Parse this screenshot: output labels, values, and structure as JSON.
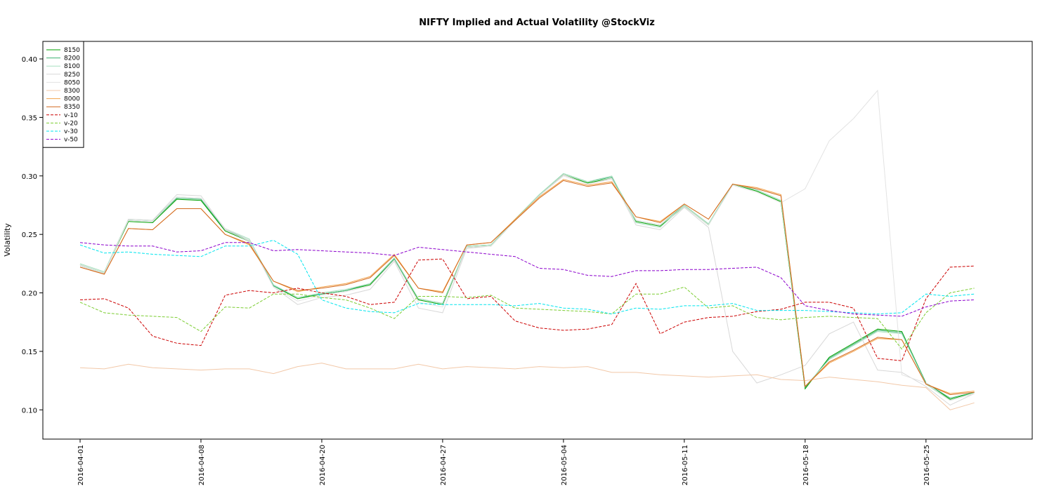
{
  "chart_data": {
    "type": "line",
    "title": "NIFTY Implied and Actual Volatility @StockViz",
    "xlabel": "",
    "ylabel": "Volatility",
    "ylim": [
      0.075,
      0.415
    ],
    "yticks": [
      "0.10",
      "0.15",
      "0.20",
      "0.25",
      "0.30",
      "0.35",
      "0.40"
    ],
    "x_tick_labels": [
      "2016-04-01",
      "2016-04-08",
      "2016-04-20",
      "2016-04-27",
      "2016-05-04",
      "2016-05-11",
      "2016-05-18",
      "2016-05-25"
    ],
    "grid": false,
    "legend_position": "top-left",
    "x": [
      "2016-04-01",
      "2016-04-04",
      "2016-04-05",
      "2016-04-06",
      "2016-04-07",
      "2016-04-08",
      "2016-04-11",
      "2016-04-12",
      "2016-04-13",
      "2016-04-18",
      "2016-04-20",
      "2016-04-21",
      "2016-04-22",
      "2016-04-25",
      "2016-04-26",
      "2016-04-27",
      "2016-04-28",
      "2016-04-29",
      "2016-05-02",
      "2016-05-03",
      "2016-05-04",
      "2016-05-05",
      "2016-05-06",
      "2016-05-09",
      "2016-05-10",
      "2016-05-11",
      "2016-05-12",
      "2016-05-13",
      "2016-05-16",
      "2016-05-17",
      "2016-05-18",
      "2016-05-19",
      "2016-05-20",
      "2016-05-23",
      "2016-05-24",
      "2016-05-25",
      "2016-05-26",
      "2016-05-27",
      "2016-05-30"
    ],
    "series": [
      {
        "name": "8150",
        "color": "#00a000",
        "dash": "",
        "values": [
          0.224,
          0.217,
          0.261,
          0.26,
          0.28,
          0.279,
          0.253,
          0.244,
          0.206,
          0.195,
          0.199,
          0.202,
          0.207,
          0.229,
          0.194,
          0.19,
          0.239,
          0.24,
          0.262,
          0.283,
          0.301,
          0.294,
          0.298,
          0.261,
          0.257,
          0.274,
          0.258,
          0.293,
          0.287,
          0.278,
          0.118,
          0.145,
          0.157,
          0.169,
          0.167,
          0.123,
          0.109,
          0.115,
          null
        ]
      },
      {
        "name": "8200",
        "color": "#3cb371",
        "dash": "",
        "values": [
          0.224,
          0.217,
          0.262,
          0.261,
          0.281,
          0.28,
          0.254,
          0.245,
          0.206,
          0.196,
          0.199,
          0.202,
          0.208,
          0.229,
          0.195,
          0.191,
          0.24,
          0.241,
          0.263,
          0.284,
          0.302,
          0.295,
          0.299,
          0.262,
          0.258,
          0.275,
          0.259,
          0.293,
          0.288,
          0.279,
          0.119,
          0.144,
          0.156,
          0.168,
          0.166,
          0.123,
          0.11,
          0.115,
          null
        ]
      },
      {
        "name": "8100",
        "color": "#a8e0c0",
        "dash": "",
        "values": [
          0.225,
          0.218,
          0.263,
          0.262,
          0.282,
          0.281,
          0.255,
          0.246,
          0.207,
          0.196,
          0.2,
          0.203,
          0.208,
          0.23,
          0.195,
          0.191,
          0.24,
          0.241,
          0.263,
          0.284,
          0.302,
          0.295,
          0.3,
          0.26,
          0.256,
          0.275,
          0.259,
          0.293,
          0.288,
          0.279,
          0.12,
          0.143,
          0.155,
          0.167,
          0.165,
          0.122,
          0.108,
          0.114,
          null
        ]
      },
      {
        "name": "8250",
        "color": "#d8d8d8",
        "dash": "",
        "values": [
          0.223,
          0.216,
          0.263,
          0.262,
          0.284,
          0.283,
          0.254,
          0.244,
          0.205,
          0.19,
          0.196,
          0.198,
          0.203,
          0.227,
          0.187,
          0.183,
          0.238,
          0.24,
          0.262,
          0.283,
          0.301,
          0.293,
          0.298,
          0.258,
          0.254,
          0.273,
          0.256,
          0.15,
          0.123,
          0.13,
          0.138,
          0.165,
          0.175,
          0.134,
          0.132,
          0.12,
          0.104,
          0.114,
          null
        ]
      },
      {
        "name": "8050",
        "color": "#e3e3e3",
        "dash": "",
        "values": [
          0.224,
          0.217,
          0.262,
          0.261,
          0.282,
          0.281,
          0.255,
          0.245,
          0.205,
          0.193,
          0.198,
          0.201,
          0.206,
          0.228,
          0.192,
          0.188,
          0.239,
          0.24,
          0.262,
          0.283,
          0.3,
          0.293,
          0.297,
          0.262,
          0.258,
          0.274,
          0.258,
          0.292,
          0.286,
          0.277,
          0.289,
          0.33,
          0.349,
          0.373,
          0.13,
          0.123,
          0.108,
          0.114,
          null
        ]
      },
      {
        "name": "8300",
        "color": "#f2c8a8",
        "dash": "",
        "values": [
          0.136,
          0.135,
          0.139,
          0.136,
          0.135,
          0.134,
          0.135,
          0.135,
          0.131,
          0.137,
          0.14,
          0.135,
          0.135,
          0.135,
          0.139,
          0.135,
          0.137,
          0.136,
          0.135,
          0.137,
          0.136,
          0.137,
          0.132,
          0.132,
          0.13,
          0.129,
          0.128,
          0.129,
          0.13,
          0.126,
          0.125,
          0.128,
          0.126,
          0.124,
          0.121,
          0.119,
          0.1,
          0.106,
          null
        ]
      },
      {
        "name": "8000",
        "color": "#f2a24a",
        "dash": "",
        "values": [
          0.222,
          0.216,
          0.255,
          0.254,
          0.272,
          0.272,
          0.25,
          0.241,
          0.21,
          0.201,
          0.205,
          0.208,
          0.214,
          0.233,
          0.204,
          0.201,
          0.241,
          0.243,
          0.263,
          0.282,
          0.297,
          0.292,
          0.295,
          0.265,
          0.261,
          0.276,
          0.263,
          0.293,
          0.29,
          0.284,
          0.12,
          0.14,
          0.15,
          0.161,
          0.16,
          0.122,
          0.114,
          0.116,
          null
        ]
      },
      {
        "name": "8350",
        "color": "#d2691e",
        "dash": "",
        "values": [
          0.222,
          0.216,
          0.255,
          0.254,
          0.272,
          0.272,
          0.25,
          0.242,
          0.21,
          0.202,
          0.204,
          0.207,
          0.213,
          0.232,
          0.204,
          0.2,
          0.241,
          0.243,
          0.262,
          0.281,
          0.296,
          0.291,
          0.294,
          0.265,
          0.26,
          0.276,
          0.263,
          0.293,
          0.289,
          0.283,
          0.12,
          0.141,
          0.151,
          0.162,
          0.16,
          0.122,
          0.113,
          0.115,
          null
        ]
      },
      {
        "name": "v-10",
        "color": "#cc0000",
        "dash": "4,2",
        "values": [
          0.194,
          0.195,
          0.187,
          0.163,
          0.157,
          0.155,
          0.198,
          0.202,
          0.2,
          0.204,
          0.2,
          0.197,
          0.19,
          0.192,
          0.228,
          0.229,
          0.195,
          0.197,
          0.176,
          0.17,
          0.168,
          0.169,
          0.173,
          0.208,
          0.165,
          0.175,
          0.179,
          0.18,
          0.184,
          0.186,
          0.192,
          0.192,
          0.187,
          0.144,
          0.142,
          0.195,
          0.222,
          0.223,
          null
        ]
      },
      {
        "name": "v-20",
        "color": "#7ccd32",
        "dash": "4,2",
        "values": [
          0.192,
          0.183,
          0.181,
          0.18,
          0.179,
          0.167,
          0.188,
          0.187,
          0.199,
          0.199,
          0.196,
          0.194,
          0.187,
          0.178,
          0.197,
          0.197,
          0.196,
          0.198,
          0.187,
          0.186,
          0.185,
          0.184,
          0.182,
          0.199,
          0.199,
          0.205,
          0.187,
          0.189,
          0.179,
          0.177,
          0.179,
          0.18,
          0.179,
          0.178,
          0.152,
          0.183,
          0.2,
          0.204,
          null
        ]
      },
      {
        "name": "v-30",
        "color": "#00e5ee",
        "dash": "4,2",
        "values": [
          0.241,
          0.234,
          0.235,
          0.233,
          0.232,
          0.231,
          0.24,
          0.24,
          0.245,
          0.233,
          0.194,
          0.187,
          0.184,
          0.183,
          0.191,
          0.19,
          0.19,
          0.19,
          0.189,
          0.191,
          0.187,
          0.186,
          0.182,
          0.187,
          0.186,
          0.189,
          0.189,
          0.191,
          0.185,
          0.185,
          0.185,
          0.184,
          0.183,
          0.182,
          0.183,
          0.199,
          0.197,
          0.199,
          null
        ]
      },
      {
        "name": "v-50",
        "color": "#8b00cc",
        "dash": "4,2",
        "values": [
          0.243,
          0.241,
          0.24,
          0.24,
          0.235,
          0.236,
          0.243,
          0.243,
          0.236,
          0.237,
          0.236,
          0.235,
          0.234,
          0.232,
          0.239,
          0.237,
          0.235,
          0.233,
          0.231,
          0.221,
          0.22,
          0.215,
          0.214,
          0.219,
          0.219,
          0.22,
          0.22,
          0.221,
          0.222,
          0.213,
          0.189,
          0.185,
          0.182,
          0.181,
          0.18,
          0.188,
          0.193,
          0.194,
          null
        ]
      }
    ]
  }
}
